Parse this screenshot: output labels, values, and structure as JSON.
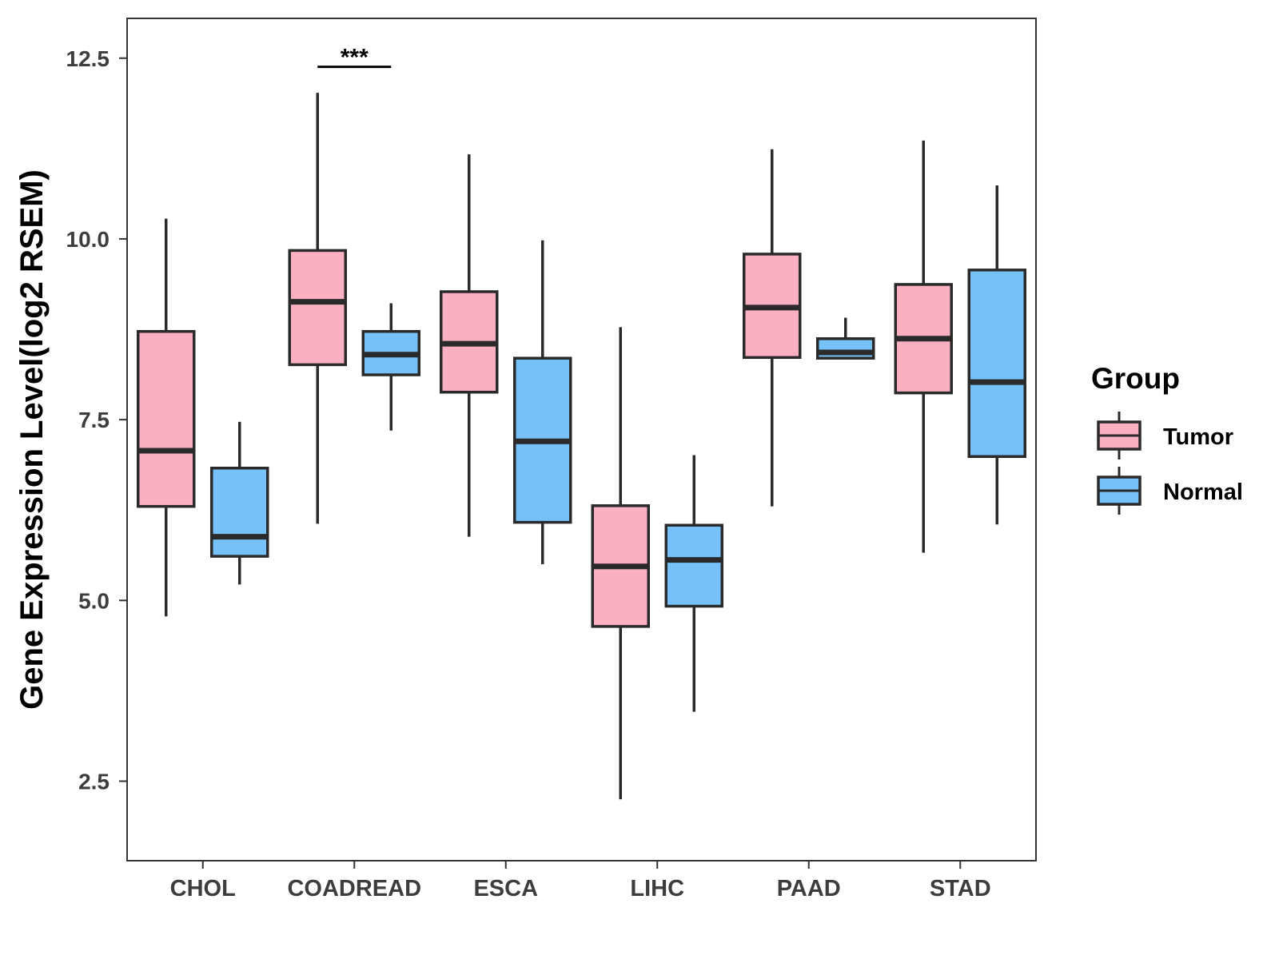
{
  "chart_data": {
    "type": "boxplot",
    "title": "",
    "xlabel": "",
    "ylabel": "Gene Expression Level(log2 RSEM)",
    "ylim": [
      1.4,
      13.05
    ],
    "yticks": [
      2.5,
      5.0,
      7.5,
      10.0,
      12.5
    ],
    "ytick_labels": [
      "2.5",
      "5.0",
      "7.5",
      "10.0",
      "12.5"
    ],
    "categories": [
      "CHOL",
      "COADREAD",
      "ESCA",
      "LIHC",
      "PAAD",
      "STAD"
    ],
    "legend": {
      "title": "Group",
      "position": "right"
    },
    "series": [
      {
        "name": "Tumor",
        "color": "#FBB0C1",
        "boxes": [
          {
            "category": "CHOL",
            "whisker_low": 4.78,
            "q1": 6.3,
            "median": 7.07,
            "q3": 8.72,
            "whisker_high": 10.28
          },
          {
            "category": "COADREAD",
            "whisker_low": 6.06,
            "q1": 8.26,
            "median": 9.13,
            "q3": 9.84,
            "whisker_high": 12.02
          },
          {
            "category": "ESCA",
            "whisker_low": 5.88,
            "q1": 7.88,
            "median": 8.55,
            "q3": 9.27,
            "whisker_high": 11.17
          },
          {
            "category": "LIHC",
            "whisker_low": 2.25,
            "q1": 4.64,
            "median": 5.47,
            "q3": 6.31,
            "whisker_high": 8.78
          },
          {
            "category": "PAAD",
            "whisker_low": 6.3,
            "q1": 8.36,
            "median": 9.05,
            "q3": 9.79,
            "whisker_high": 11.24
          },
          {
            "category": "STAD",
            "whisker_low": 5.66,
            "q1": 7.87,
            "median": 8.62,
            "q3": 9.37,
            "whisker_high": 11.36
          }
        ]
      },
      {
        "name": "Normal",
        "color": "#76C1F8",
        "boxes": [
          {
            "category": "CHOL",
            "whisker_low": 5.22,
            "q1": 5.61,
            "median": 5.88,
            "q3": 6.83,
            "whisker_high": 7.47
          },
          {
            "category": "COADREAD",
            "whisker_low": 7.35,
            "q1": 8.12,
            "median": 8.4,
            "q3": 8.72,
            "whisker_high": 9.11
          },
          {
            "category": "ESCA",
            "whisker_low": 5.5,
            "q1": 6.08,
            "median": 7.2,
            "q3": 8.35,
            "whisker_high": 9.98
          },
          {
            "category": "LIHC",
            "whisker_low": 3.46,
            "q1": 4.92,
            "median": 5.56,
            "q3": 6.04,
            "whisker_high": 7.01
          },
          {
            "category": "PAAD",
            "whisker_low": 8.35,
            "q1": 8.35,
            "median": 8.43,
            "q3": 8.62,
            "whisker_high": 8.91
          },
          {
            "category": "STAD",
            "whisker_low": 6.05,
            "q1": 6.99,
            "median": 8.02,
            "q3": 9.57,
            "whisker_high": 10.74
          }
        ]
      }
    ],
    "annotations": [
      {
        "category": "COADREAD",
        "text": "***",
        "y": 12.38
      }
    ]
  }
}
